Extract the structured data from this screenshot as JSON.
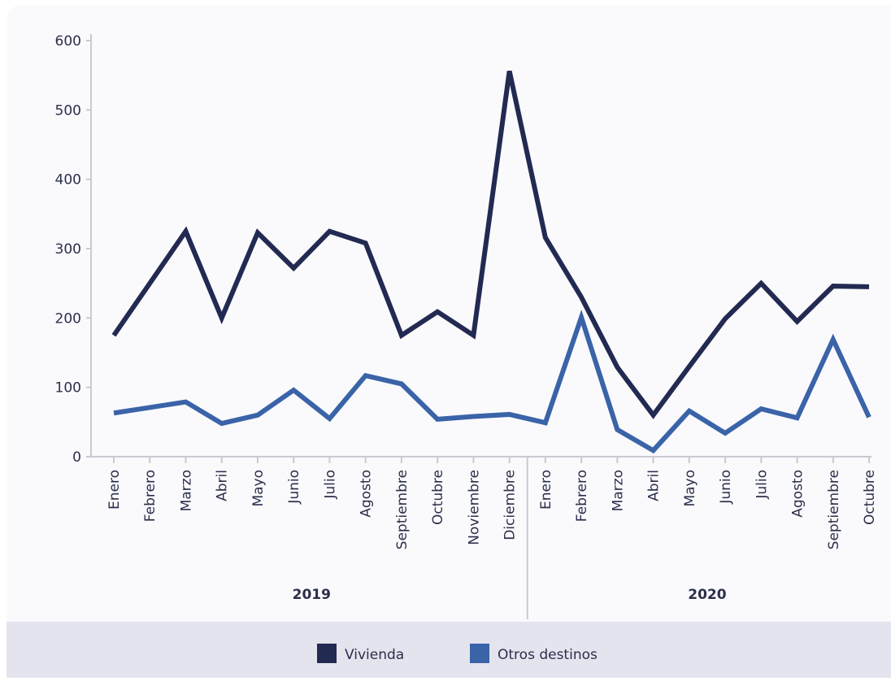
{
  "chart_data": {
    "type": "line",
    "groups": [
      {
        "label": "2019",
        "categories": [
          "Enero",
          "Febrero",
          "Marzo",
          "Abril",
          "Mayo",
          "Junio",
          "Julio",
          "Agosto",
          "Septiembre",
          "Octubre",
          "Noviembre",
          "Diciembre"
        ]
      },
      {
        "label": "2020",
        "categories": [
          "Enero",
          "Febrero",
          "Marzo",
          "Abril",
          "Mayo",
          "Junio",
          "Julio",
          "Agosto",
          "Septiembre",
          "Octubre"
        ]
      }
    ],
    "series": [
      {
        "name": "Vivienda",
        "color": "#232a52",
        "values": [
          175,
          250,
          325,
          200,
          323,
          272,
          325,
          308,
          175,
          209,
          175,
          556,
          316,
          230,
          129,
          60,
          130,
          199,
          250,
          195,
          246,
          245
        ]
      },
      {
        "name": "Otros destinos",
        "color": "#3a63a8",
        "values": [
          63,
          71,
          79,
          48,
          60,
          96,
          55,
          117,
          105,
          54,
          58,
          61,
          49,
          201,
          39,
          9,
          66,
          34,
          69,
          56,
          169,
          57
        ]
      }
    ],
    "ylim": [
      0,
      600
    ],
    "yticks": [
      0,
      100,
      200,
      300,
      400,
      500,
      600
    ]
  }
}
